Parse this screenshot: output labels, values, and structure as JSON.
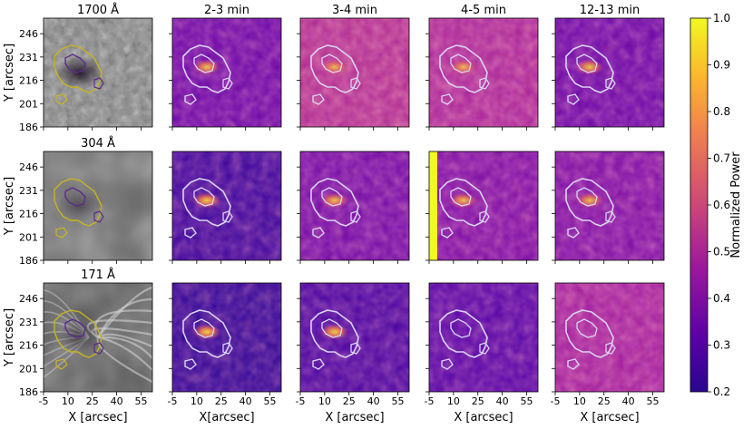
{
  "chart_data": {
    "type": "heatmap",
    "title": "",
    "xlabel": "X [arcsec]",
    "xlabel_alt": "X[arcsec]",
    "ylabel": "Y [arcsec]",
    "x_ticks": [
      -5,
      10,
      25,
      40,
      55
    ],
    "y_ticks": [
      246,
      231,
      216,
      201,
      186
    ],
    "xlim": [
      -5,
      62
    ],
    "ylim": [
      186,
      256
    ],
    "row_titles": [
      "1700 Å",
      "304 Å",
      "171 Å"
    ],
    "column_titles": [
      "2-3 min",
      "3-4 min",
      "4-5 min",
      "12-13 min"
    ],
    "colorbar": {
      "label": "Normalized Power",
      "ticks": [
        1.0,
        0.9,
        0.8,
        0.7,
        0.6,
        0.5,
        0.4,
        0.3,
        0.2
      ],
      "tick_labels": [
        "1.0",
        "0.9",
        "0.8",
        "0.7",
        "0.6",
        "0.5",
        "0.4",
        "0.3",
        "0.2"
      ],
      "range": [
        0.2,
        1.0
      ],
      "colormap": "plasma"
    },
    "power_level_mean": [
      [
        0.36,
        0.52,
        0.5,
        0.36
      ],
      [
        0.28,
        0.38,
        0.4,
        0.4
      ],
      [
        0.26,
        0.3,
        0.32,
        0.48
      ]
    ],
    "contour_colors": {
      "umbra_intensity_panels": "#5a2c8a",
      "penumbra_intensity_panels": "#c8b41e",
      "power_panels": "#d8d4f0"
    },
    "colormap_stops": [
      "#0d0887",
      "#5c01a6",
      "#9c179e",
      "#cc4778",
      "#ed7953",
      "#fdb42f",
      "#f0f921"
    ]
  }
}
